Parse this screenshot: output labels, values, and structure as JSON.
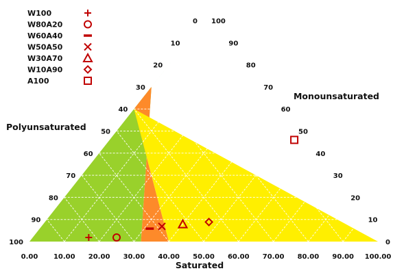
{
  "chart_data": {
    "type": "scatter",
    "subtype": "ternary",
    "title": "",
    "axes": {
      "saturated": {
        "title": "Saturated",
        "ticks": [
          "0.00",
          "10.00",
          "20.00",
          "30.00",
          "40.00",
          "50.00",
          "60.00",
          "70.00",
          "80.00",
          "90.00",
          "100.00"
        ],
        "range": [
          0,
          100
        ]
      },
      "monounsaturated": {
        "title": "Monounsaturated",
        "ticks": [
          "0",
          "10",
          "20",
          "30",
          "40",
          "50",
          "60",
          "70",
          "80",
          "90",
          "100"
        ],
        "range": [
          0,
          100
        ]
      },
      "polyunsaturated": {
        "title": "Polyunsaturated",
        "ticks": [
          "0",
          "10",
          "20",
          "30",
          "40",
          "50",
          "60",
          "70",
          "80",
          "90",
          "100"
        ],
        "range": [
          0,
          100
        ]
      }
    },
    "regions": [
      {
        "color": "#99d12b",
        "saturated_upper_at_base": 32,
        "saturated_upper_at_mono70": 0
      },
      {
        "color": "#fd8a2a",
        "saturated_lower_at_base": 32,
        "saturated_upper_at_base": 40
      },
      {
        "color": "#ffef00",
        "saturated_lower_at_base": 40,
        "saturated_lower_at_mono60": 0
      }
    ],
    "grid": true,
    "legend_position": "top-left",
    "series": [
      {
        "name": "W100",
        "marker": "plus",
        "saturated": 17,
        "monounsaturated": 0,
        "polyunsaturated": 83
      },
      {
        "name": "W80A20",
        "marker": "circle",
        "saturated": 25,
        "monounsaturated": 0,
        "polyunsaturated": 75
      },
      {
        "name": "W60A40",
        "marker": "dash",
        "saturated": 32.5,
        "monounsaturated": 4,
        "polyunsaturated": 63.5
      },
      {
        "name": "W50A50",
        "marker": "x",
        "saturated": 35.5,
        "monounsaturated": 5,
        "polyunsaturated": 59.5
      },
      {
        "name": "W30A70",
        "marker": "triangle",
        "saturated": 41,
        "monounsaturated": 6,
        "polyunsaturated": 53
      },
      {
        "name": "W10A90",
        "marker": "diamond",
        "saturated": 48,
        "monounsaturated": 7,
        "polyunsaturated": 45
      },
      {
        "name": "A100",
        "marker": "square",
        "saturated": 53,
        "monounsaturated": 46,
        "polyunsaturated": 1
      }
    ],
    "marker_color": "#c00000"
  }
}
